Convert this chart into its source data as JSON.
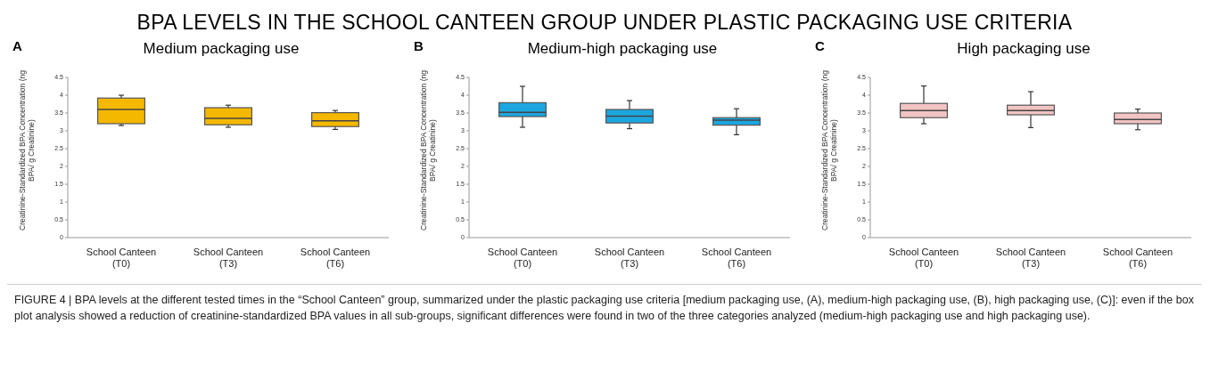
{
  "chart_data": [
    {
      "type": "box",
      "title": "Medium packaging use",
      "ylabel": "Creatinine-Standardized BPA Concentration (ng BPA/ g Creatinine)",
      "annotations": [
        "A",
        "BPA LEVELS IN THE SCHOOL CANTEEN GROUP UNDER PLASTIC PACKAGING USE CRITERIA",
        "FIGURE 4 | BPA levels at the different tested times in the “School Canteen” group, summarized under the plastic packaging use criteria [medium packaging use, (A), medium-high packaging use, (B), high packaging use, (C)]: even if the box plot analysis showed a reduction of creatinine-standardized BPA values in all sub-groups, significant differences were found in two of the three categories analyzed (medium-high packaging use and high packaging use)."
      ],
      "categories": [
        "School Canteen (T0)",
        "School Canteen (T3)",
        "School Canteen (T6)"
      ],
      "color": "#f5b800",
      "ylim": [
        0,
        4.5
      ],
      "yticks": [
        0,
        0.5,
        1,
        1.5,
        2,
        2.5,
        3,
        3.5,
        4,
        4.5
      ],
      "grid": false,
      "boxes": [
        {
          "low": 3.15,
          "q1": 3.2,
          "median": 3.6,
          "q3": 3.92,
          "high": 4.0
        },
        {
          "low": 3.1,
          "q1": 3.17,
          "median": 3.35,
          "q3": 3.65,
          "high": 3.72
        },
        {
          "low": 3.04,
          "q1": 3.12,
          "median": 3.28,
          "q3": 3.51,
          "high": 3.57
        }
      ]
    },
    {
      "type": "box",
      "title": "Medium-high packaging use",
      "ylabel": "Creatinine-Standardized BPA Concentration (ng BPA/ g Creatinine)",
      "annotations": [
        "B"
      ],
      "categories": [
        "School Canteen (T0)",
        "School Canteen (T3)",
        "School Canteen (T6)"
      ],
      "color": "#1ca6e0",
      "ylim": [
        0,
        4.5
      ],
      "yticks": [
        0,
        0.5,
        1,
        1.5,
        2,
        2.5,
        3,
        3.5,
        4,
        4.5
      ],
      "grid": false,
      "boxes": [
        {
          "low": 3.1,
          "q1": 3.4,
          "median": 3.52,
          "q3": 3.79,
          "high": 4.25
        },
        {
          "low": 3.06,
          "q1": 3.22,
          "median": 3.41,
          "q3": 3.6,
          "high": 3.85
        },
        {
          "low": 2.89,
          "q1": 3.16,
          "median": 3.3,
          "q3": 3.37,
          "high": 3.62
        }
      ]
    },
    {
      "type": "box",
      "title": "High packaging use",
      "ylabel": "Creatinine-Standardized BPA Concentration (ng BPA/ g Creatinine)",
      "annotations": [
        "C"
      ],
      "categories": [
        "School Canteen (T0)",
        "School Canteen (T3)",
        "School Canteen (T6)"
      ],
      "color": "#f2c4c4",
      "ylim": [
        0,
        4.5
      ],
      "yticks": [
        0,
        0.5,
        1,
        1.5,
        2,
        2.5,
        3,
        3.5,
        4,
        4.5
      ],
      "grid": false,
      "boxes": [
        {
          "low": 3.2,
          "q1": 3.37,
          "median": 3.57,
          "q3": 3.77,
          "high": 4.26
        },
        {
          "low": 3.09,
          "q1": 3.45,
          "median": 3.57,
          "q3": 3.72,
          "high": 4.1
        },
        {
          "low": 3.03,
          "q1": 3.2,
          "median": 3.32,
          "q3": 3.5,
          "high": 3.61
        }
      ]
    }
  ]
}
